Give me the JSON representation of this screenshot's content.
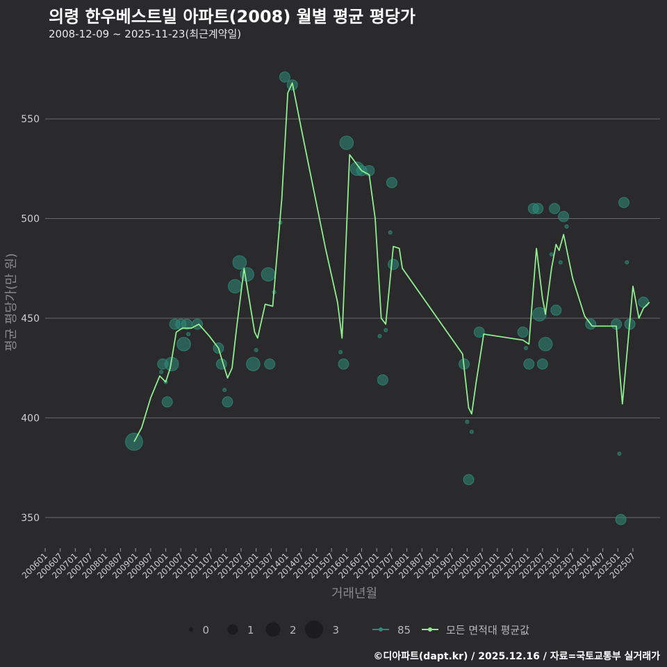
{
  "header": {
    "title": "의령 한우베스트빌 아파트(2008) 월별 평균 평당가",
    "subtitle": "2008-12-09 ~ 2025-11-23(최근계약일)"
  },
  "caption": "©디아파트(dapt.kr) / 2025.12.16 / 자료=국토교통부 실거래가",
  "colors": {
    "background": "#2a2a2c",
    "grid": "#6a6a6a",
    "series85": "#2e8b7a",
    "avg_line": "#90ee90"
  },
  "chart_data": {
    "type": "line",
    "title": "의령 한우베스트빌 아파트(2008) 월별 평균 평당가",
    "xlabel": "거래년월",
    "ylabel": "평균 평당가(만 원)",
    "ylim": [
      336,
      580
    ],
    "xlim": [
      2006.0,
      2026.4
    ],
    "y_ticks": [
      350,
      400,
      450,
      500,
      550
    ],
    "x_ticks": [
      "200601",
      "200607",
      "200701",
      "200707",
      "200801",
      "200807",
      "200901",
      "200907",
      "201001",
      "201007",
      "201101",
      "201107",
      "201201",
      "201207",
      "201301",
      "201307",
      "201401",
      "201407",
      "201501",
      "201507",
      "201601",
      "201607",
      "201701",
      "201707",
      "201801",
      "201807",
      "201901",
      "201907",
      "202001",
      "202007",
      "202101",
      "202107",
      "202201",
      "202207",
      "202301",
      "202307",
      "202401",
      "202407",
      "202501",
      "202507"
    ],
    "legend": {
      "size_title": "",
      "size_values": [
        "0",
        "1",
        "2",
        "3"
      ],
      "series": [
        "85",
        "모든 면적대 평균값"
      ]
    },
    "series": [
      {
        "name": "85",
        "type": "scatter",
        "color": "#2e8b7a",
        "points": [
          {
            "x": 2008.95,
            "y": 388,
            "n": 3
          },
          {
            "x": 2009.85,
            "y": 423,
            "n": 0
          },
          {
            "x": 2009.9,
            "y": 427,
            "n": 1.5
          },
          {
            "x": 2010.0,
            "y": 418,
            "n": 0
          },
          {
            "x": 2010.05,
            "y": 408,
            "n": 1.5
          },
          {
            "x": 2010.2,
            "y": 427,
            "n": 2.2
          },
          {
            "x": 2010.3,
            "y": 447,
            "n": 1.5
          },
          {
            "x": 2010.5,
            "y": 447,
            "n": 1.5
          },
          {
            "x": 2010.6,
            "y": 437,
            "n": 2.2
          },
          {
            "x": 2010.7,
            "y": 447,
            "n": 1.5
          },
          {
            "x": 2010.75,
            "y": 442,
            "n": 0
          },
          {
            "x": 2011.05,
            "y": 447,
            "n": 1.5
          },
          {
            "x": 2011.75,
            "y": 435,
            "n": 1.5
          },
          {
            "x": 2011.85,
            "y": 427,
            "n": 1.5
          },
          {
            "x": 2011.95,
            "y": 414,
            "n": 0
          },
          {
            "x": 2012.05,
            "y": 408,
            "n": 1.5
          },
          {
            "x": 2012.3,
            "y": 466,
            "n": 2.2
          },
          {
            "x": 2012.45,
            "y": 478,
            "n": 2.2
          },
          {
            "x": 2012.7,
            "y": 472,
            "n": 2.2
          },
          {
            "x": 2012.9,
            "y": 427,
            "n": 2.2
          },
          {
            "x": 2013.0,
            "y": 434,
            "n": 0
          },
          {
            "x": 2013.4,
            "y": 472,
            "n": 2.2
          },
          {
            "x": 2013.45,
            "y": 427,
            "n": 1.5
          },
          {
            "x": 2013.6,
            "y": 463,
            "n": 0
          },
          {
            "x": 2013.8,
            "y": 498,
            "n": 0
          },
          {
            "x": 2013.95,
            "y": 571,
            "n": 1.5
          },
          {
            "x": 2014.2,
            "y": 567,
            "n": 1.5
          },
          {
            "x": 2015.8,
            "y": 433,
            "n": 0
          },
          {
            "x": 2015.9,
            "y": 427,
            "n": 1.5
          },
          {
            "x": 2016.0,
            "y": 538,
            "n": 2.2
          },
          {
            "x": 2016.35,
            "y": 525,
            "n": 2.2
          },
          {
            "x": 2016.5,
            "y": 524,
            "n": 1.5
          },
          {
            "x": 2016.75,
            "y": 524,
            "n": 1.5
          },
          {
            "x": 2017.1,
            "y": 441,
            "n": 0
          },
          {
            "x": 2017.2,
            "y": 419,
            "n": 1.5
          },
          {
            "x": 2017.3,
            "y": 444,
            "n": 0
          },
          {
            "x": 2017.45,
            "y": 493,
            "n": 0
          },
          {
            "x": 2017.5,
            "y": 518,
            "n": 1.5
          },
          {
            "x": 2017.55,
            "y": 477,
            "n": 1.5
          },
          {
            "x": 2019.9,
            "y": 427,
            "n": 1.5
          },
          {
            "x": 2020.0,
            "y": 398,
            "n": 0
          },
          {
            "x": 2020.05,
            "y": 369,
            "n": 1.5
          },
          {
            "x": 2020.15,
            "y": 393,
            "n": 0
          },
          {
            "x": 2020.4,
            "y": 443,
            "n": 1.5
          },
          {
            "x": 2021.85,
            "y": 443,
            "n": 1.5
          },
          {
            "x": 2021.95,
            "y": 435,
            "n": 0
          },
          {
            "x": 2022.05,
            "y": 427,
            "n": 1.5
          },
          {
            "x": 2022.2,
            "y": 505,
            "n": 1.5
          },
          {
            "x": 2022.35,
            "y": 505,
            "n": 1.5
          },
          {
            "x": 2022.4,
            "y": 452,
            "n": 2.2
          },
          {
            "x": 2022.5,
            "y": 427,
            "n": 1.5
          },
          {
            "x": 2022.6,
            "y": 437,
            "n": 2.2
          },
          {
            "x": 2022.8,
            "y": 482,
            "n": 0
          },
          {
            "x": 2022.9,
            "y": 505,
            "n": 1.5
          },
          {
            "x": 2022.95,
            "y": 454,
            "n": 1.5
          },
          {
            "x": 2023.1,
            "y": 478,
            "n": 0
          },
          {
            "x": 2023.2,
            "y": 501,
            "n": 1.5
          },
          {
            "x": 2023.3,
            "y": 496,
            "n": 0
          },
          {
            "x": 2024.1,
            "y": 447,
            "n": 1.5
          },
          {
            "x": 2024.95,
            "y": 447,
            "n": 1.5
          },
          {
            "x": 2025.05,
            "y": 382,
            "n": 0
          },
          {
            "x": 2025.1,
            "y": 349,
            "n": 1.5
          },
          {
            "x": 2025.2,
            "y": 508,
            "n": 1.5
          },
          {
            "x": 2025.3,
            "y": 478,
            "n": 0
          },
          {
            "x": 2025.4,
            "y": 447,
            "n": 1.5
          },
          {
            "x": 2025.85,
            "y": 458,
            "n": 1.5
          }
        ]
      },
      {
        "name": "모든 면적대 평균값",
        "type": "line",
        "color": "#90ee90",
        "points": [
          [
            2008.95,
            388
          ],
          [
            2009.2,
            395
          ],
          [
            2009.5,
            410
          ],
          [
            2009.8,
            421
          ],
          [
            2010.0,
            418
          ],
          [
            2010.15,
            425
          ],
          [
            2010.35,
            443
          ],
          [
            2010.55,
            445
          ],
          [
            2010.85,
            445
          ],
          [
            2011.1,
            447
          ],
          [
            2011.45,
            441
          ],
          [
            2011.75,
            435
          ],
          [
            2012.05,
            420
          ],
          [
            2012.2,
            425
          ],
          [
            2012.35,
            445
          ],
          [
            2012.6,
            475
          ],
          [
            2012.95,
            443
          ],
          [
            2013.05,
            440
          ],
          [
            2013.3,
            457
          ],
          [
            2013.55,
            456
          ],
          [
            2013.85,
            510
          ],
          [
            2014.05,
            563
          ],
          [
            2014.2,
            568
          ],
          [
            2014.5,
            545
          ],
          [
            2014.9,
            515
          ],
          [
            2015.3,
            485
          ],
          [
            2015.7,
            458
          ],
          [
            2015.85,
            440
          ],
          [
            2016.1,
            532
          ],
          [
            2016.5,
            524
          ],
          [
            2016.75,
            522
          ],
          [
            2016.95,
            500
          ],
          [
            2017.15,
            450
          ],
          [
            2017.3,
            447
          ],
          [
            2017.55,
            486
          ],
          [
            2017.75,
            485
          ],
          [
            2017.85,
            475
          ],
          [
            2019.85,
            432
          ],
          [
            2020.05,
            405
          ],
          [
            2020.15,
            402
          ],
          [
            2020.3,
            418
          ],
          [
            2020.55,
            442
          ],
          [
            2021.85,
            439
          ],
          [
            2022.05,
            437
          ],
          [
            2022.3,
            485
          ],
          [
            2022.5,
            460
          ],
          [
            2022.6,
            452
          ],
          [
            2022.8,
            475
          ],
          [
            2022.95,
            487
          ],
          [
            2023.05,
            484
          ],
          [
            2023.2,
            492
          ],
          [
            2023.5,
            470
          ],
          [
            2023.9,
            451
          ],
          [
            2024.15,
            446
          ],
          [
            2024.95,
            446
          ],
          [
            2025.05,
            425
          ],
          [
            2025.15,
            407
          ],
          [
            2025.3,
            432
          ],
          [
            2025.5,
            466
          ],
          [
            2025.7,
            450
          ],
          [
            2025.85,
            455
          ],
          [
            2026.05,
            458
          ]
        ]
      }
    ]
  }
}
